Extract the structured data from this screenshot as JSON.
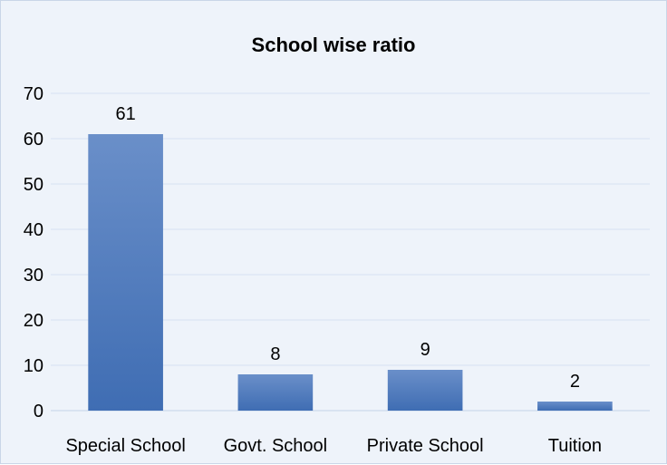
{
  "chart_data": {
    "type": "bar",
    "title": "School wise ratio",
    "categories": [
      "Special School",
      "Govt. School",
      "Private School",
      "Tuition"
    ],
    "values": [
      61,
      8,
      9,
      2
    ],
    "ylim": [
      0,
      70
    ],
    "yticks": [
      0,
      10,
      20,
      30,
      40,
      50,
      60,
      70
    ],
    "xlabel": "",
    "ylabel": "",
    "grid": true,
    "legend": "none",
    "data_labels": true,
    "colors": {
      "bar_top": "#6a8fc9",
      "bar_bottom": "#3f6db3",
      "grid": "#d6e2f1",
      "background": "#eef3fa"
    }
  }
}
